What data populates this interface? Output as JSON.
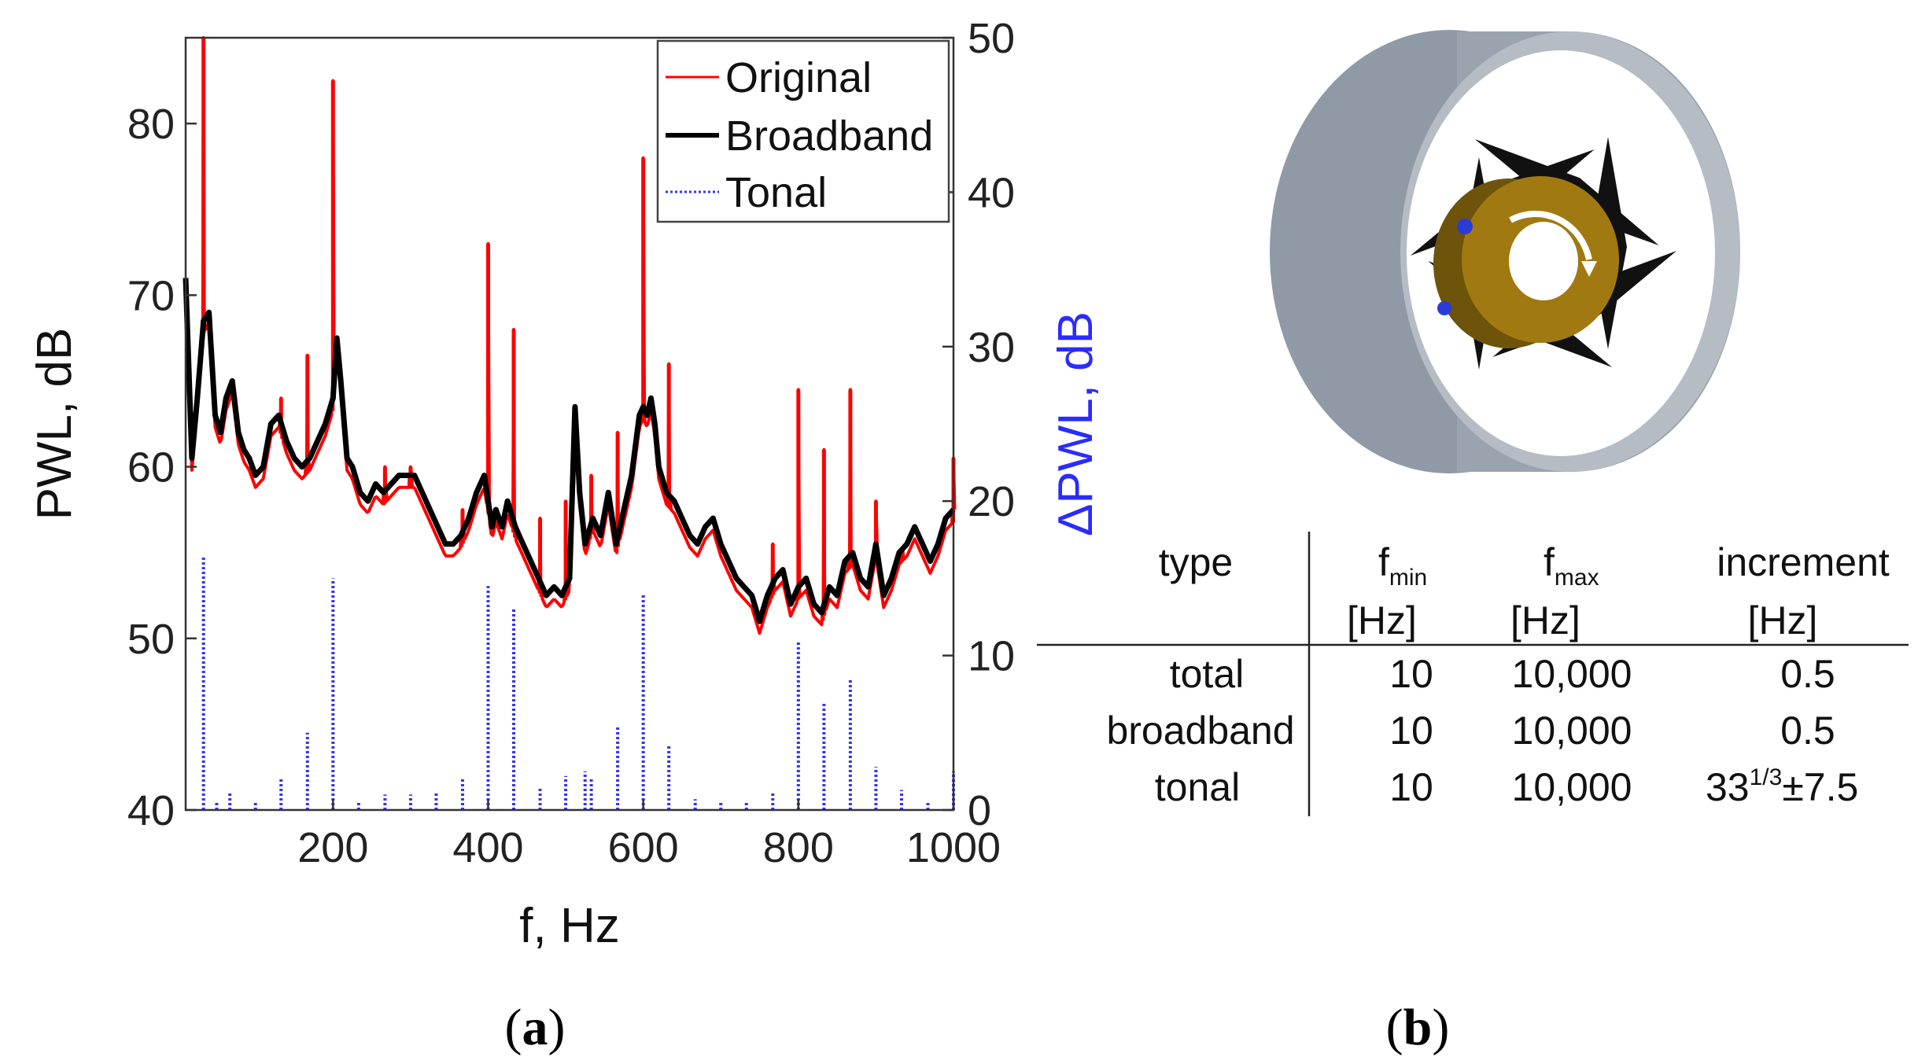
{
  "colors": {
    "original": "#ff0000",
    "broadband": "#000000",
    "tonal": "#3232ff",
    "right_axis_label": "#2b2bff",
    "casing": "#8f9aa6",
    "casing_inner": "#c8ced4",
    "hub": "#a07a10",
    "blade": "#111111"
  },
  "chart_data": {
    "type": "line",
    "xlabel": "f, Hz",
    "ylabel_left": "PWL, dB",
    "ylabel_right": "ΔPWL, dB",
    "xlim": [
      10,
      1000
    ],
    "ylim_left": [
      40,
      85
    ],
    "ylim_right": [
      0,
      50
    ],
    "x_ticks": [
      200,
      400,
      600,
      800,
      1000
    ],
    "x_tick_labels": [
      "200",
      "400",
      "600",
      "800",
      "1000"
    ],
    "y_left_ticks": [
      40,
      50,
      60,
      70,
      80
    ],
    "y_left_tick_labels": [
      "40",
      "50",
      "60",
      "70",
      "80"
    ],
    "y_right_ticks": [
      0,
      10,
      20,
      30,
      40,
      50
    ],
    "y_right_tick_labels": [
      "0",
      "10",
      "20",
      "30",
      "40",
      "50"
    ],
    "legend": {
      "placement": "top-right",
      "entries": [
        "Original",
        "Broadband",
        "Tonal"
      ]
    },
    "series": [
      {
        "name": "Broadband",
        "axis": "left",
        "style": "thick-solid",
        "x": [
          10,
          18,
          25,
          33,
          40,
          48,
          55,
          62,
          70,
          78,
          85,
          92,
          100,
          110,
          120,
          130,
          140,
          150,
          160,
          170,
          180,
          190,
          200,
          205,
          210,
          218,
          225,
          235,
          245,
          255,
          265,
          275,
          285,
          295,
          305,
          315,
          325,
          335,
          345,
          355,
          365,
          375,
          385,
          395,
          400,
          405,
          410,
          418,
          425,
          435,
          445,
          455,
          465,
          475,
          485,
          495,
          505,
          512,
          518,
          525,
          535,
          545,
          555,
          565,
          575,
          585,
          595,
          600,
          605,
          610,
          615,
          620,
          630,
          640,
          650,
          660,
          670,
          680,
          690,
          700,
          710,
          720,
          730,
          740,
          750,
          760,
          770,
          780,
          790,
          800,
          810,
          820,
          830,
          840,
          850,
          860,
          870,
          880,
          890,
          900,
          910,
          920,
          930,
          940,
          950,
          960,
          970,
          980,
          990,
          1000
        ],
        "values": [
          71,
          60.5,
          64,
          68.5,
          69,
          63,
          62,
          64,
          65,
          62,
          61,
          60.5,
          59.5,
          60,
          62.5,
          63,
          61.5,
          60.5,
          60,
          60.5,
          61.5,
          62.5,
          64,
          67.5,
          65,
          60.5,
          60,
          58.5,
          58,
          59,
          58.5,
          59,
          59.5,
          59.5,
          59.5,
          58.5,
          57.5,
          56.5,
          55.5,
          55.5,
          56,
          57,
          58.5,
          59.5,
          58,
          56.5,
          57.5,
          56.5,
          58,
          56.5,
          55.5,
          54.5,
          53.5,
          52.5,
          53,
          52.5,
          53.5,
          63.5,
          58.5,
          55.5,
          57,
          56,
          58.5,
          55.5,
          57.5,
          59.5,
          63,
          63.5,
          63,
          64,
          62.5,
          60,
          58.5,
          58,
          57,
          56,
          55.5,
          56.5,
          57,
          55.5,
          54.5,
          53.5,
          53,
          52.5,
          51,
          52.5,
          53.5,
          54,
          52,
          53,
          53.5,
          52,
          51.5,
          53,
          52.5,
          54.5,
          55,
          53.5,
          53,
          55.5,
          52.5,
          53.5,
          55,
          55.5,
          56.5,
          55.5,
          54.5,
          55.5,
          57,
          57.5
        ]
      },
      {
        "name": "Original",
        "axis": "left",
        "style": "thin-solid",
        "peaks": [
          {
            "f": 33,
            "value": 85
          },
          {
            "f": 133,
            "value": 64
          },
          {
            "f": 167,
            "value": 66.5
          },
          {
            "f": 200,
            "value": 82.5
          },
          {
            "f": 267,
            "value": 60
          },
          {
            "f": 300,
            "value": 60
          },
          {
            "f": 367,
            "value": 57.5
          },
          {
            "f": 400,
            "value": 73
          },
          {
            "f": 433,
            "value": 68
          },
          {
            "f": 467,
            "value": 57
          },
          {
            "f": 500,
            "value": 58
          },
          {
            "f": 533,
            "value": 59.5
          },
          {
            "f": 567,
            "value": 62
          },
          {
            "f": 600,
            "value": 78
          },
          {
            "f": 633,
            "value": 66
          },
          {
            "f": 767,
            "value": 55.5
          },
          {
            "f": 800,
            "value": 64.5
          },
          {
            "f": 833,
            "value": 61
          },
          {
            "f": 867,
            "value": 64.5
          },
          {
            "f": 900,
            "value": 58
          },
          {
            "f": 933,
            "value": 55
          },
          {
            "f": 1000,
            "value": 60.5
          }
        ]
      },
      {
        "name": "Tonal",
        "axis": "right",
        "style": "dotted",
        "x": [
          33,
          50,
          67,
          100,
          133,
          167,
          200,
          233,
          267,
          300,
          333,
          367,
          400,
          433,
          467,
          500,
          525,
          533,
          567,
          600,
          633,
          667,
          700,
          733,
          767,
          800,
          833,
          867,
          900,
          933,
          967,
          1000
        ],
        "values": [
          16.5,
          0.5,
          1.2,
          0.5,
          2,
          5,
          15,
          0.5,
          1,
          1,
          1.2,
          2,
          14.5,
          13,
          1.5,
          2.2,
          2.5,
          2,
          5.5,
          14,
          4.2,
          0.7,
          0.6,
          0.5,
          1.2,
          11,
          7,
          8.5,
          2.8,
          1.3,
          0.6,
          2.5
        ]
      }
    ]
  },
  "panel_labels": {
    "a_open": "(",
    "a_letter": "a",
    "a_close": ")",
    "b_open": "(",
    "b_letter": "b",
    "b_close": ")"
  },
  "table": {
    "headers": {
      "type": "type",
      "fmin_base": "f",
      "fmin_sub": "min",
      "fmin_unit": "[Hz]",
      "fmax_base": "f",
      "fmax_sub": "max",
      "fmax_unit": "[Hz]",
      "increment": "increment",
      "increment_unit": "[Hz]"
    },
    "rows": [
      {
        "type": "total",
        "fmin": "10",
        "fmax": "10,000",
        "increment": "0.5"
      },
      {
        "type": "broadband",
        "fmin": "10",
        "fmax": "10,000",
        "increment": "0.5"
      },
      {
        "type": "tonal",
        "fmin": "10",
        "fmax": "10,000",
        "increment_base": "33",
        "increment_sup": "1/3",
        "increment_tail": "±7.5"
      }
    ]
  }
}
